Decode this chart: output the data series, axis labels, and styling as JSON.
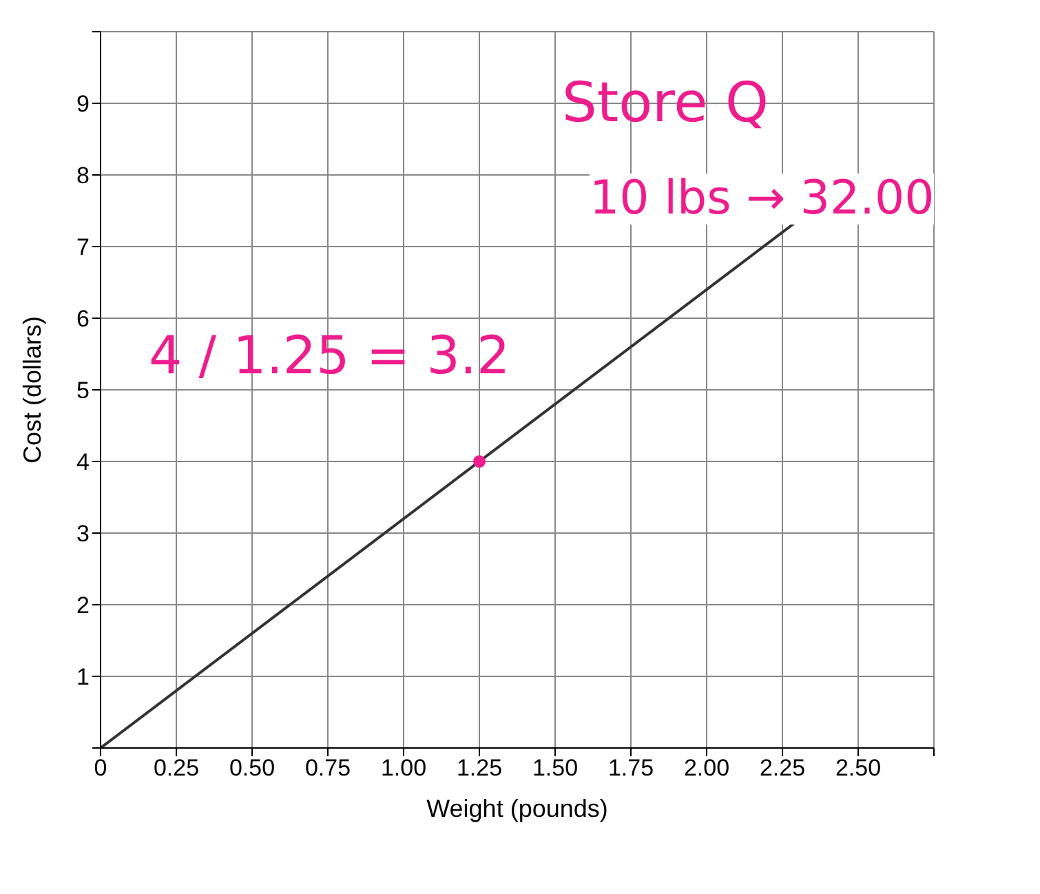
{
  "chart_data": {
    "type": "line",
    "xlabel": "Weight (pounds)",
    "ylabel": "Cost (dollars)",
    "xlim": [
      0,
      2.75
    ],
    "ylim": [
      0,
      10
    ],
    "xticks": [
      0,
      {
        "value": 0.25,
        "label": "0.25"
      },
      {
        "value": 0.5,
        "label": "0.50"
      },
      {
        "value": 0.75,
        "label": "0.75"
      },
      {
        "value": 1,
        "label": "1.00"
      },
      {
        "value": 1.25,
        "label": "1.25"
      },
      {
        "value": 1.5,
        "label": "1.50"
      },
      {
        "value": 1.75,
        "label": "1.75"
      },
      {
        "value": 2,
        "label": "2.00"
      },
      {
        "value": 2.25,
        "label": "2.25"
      },
      {
        "value": 2.5,
        "label": "2.50"
      },
      {
        "value": 2.75,
        "label": null
      }
    ],
    "yticks": [
      {
        "value": 0,
        "label": null
      },
      1,
      2,
      3,
      4,
      5,
      6,
      7,
      8,
      9,
      {
        "value": 10,
        "label": null
      }
    ],
    "grid": true,
    "series": [
      {
        "color": "#333333",
        "x": [
          0,
          2.5
        ],
        "values": [
          0,
          8
        ],
        "marker": "none"
      },
      {
        "type": "scatter",
        "color": "#ee1c8c",
        "x": [
          1.25
        ],
        "values": [
          4
        ],
        "marker": "circle"
      }
    ],
    "annotations": [
      "Store Q",
      "10 lbs → 32.00",
      "4 / 1.25 = 3.2"
    ]
  }
}
